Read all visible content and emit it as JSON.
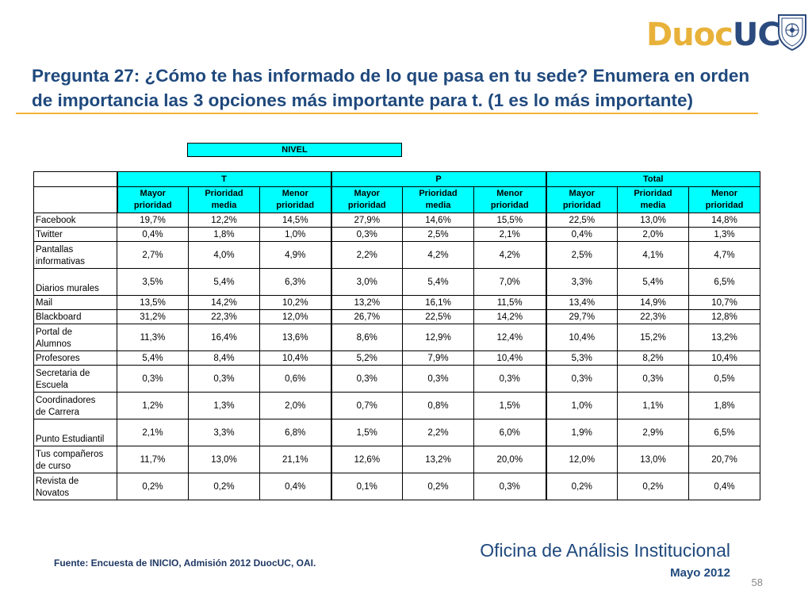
{
  "logo": {
    "duoc": "Duoc",
    "uc": "UC"
  },
  "title": "Pregunta 27: ¿Cómo te has informado  de lo que pasa en tu sede? Enumera en orden de importancia las 3 opciones más importante para t. (1 es lo más importante)",
  "table": {
    "nivel_label": "NIVEL",
    "groups": [
      "T",
      "P",
      "Total"
    ],
    "subheaders": [
      [
        "Mayor",
        "prioridad"
      ],
      [
        "Prioridad",
        "media"
      ],
      [
        "Menor",
        "prioridad"
      ],
      [
        "Mayor",
        "prioridad"
      ],
      [
        "Prioridad",
        "media"
      ],
      [
        "Menor",
        "prioridad"
      ],
      [
        "Mayor",
        "prioridad"
      ],
      [
        "Prioridad",
        "media"
      ],
      [
        "Menor",
        "prioridad"
      ]
    ],
    "rows": [
      {
        "label": [
          "Facebook"
        ],
        "values": [
          "19,7%",
          "12,2%",
          "14,5%",
          "27,9%",
          "14,6%",
          "15,5%",
          "22,5%",
          "13,0%",
          "14,8%"
        ]
      },
      {
        "label": [
          "Twitter"
        ],
        "values": [
          "0,4%",
          "1,8%",
          "1,0%",
          "0,3%",
          "2,5%",
          "2,1%",
          "0,4%",
          "2,0%",
          "1,3%"
        ]
      },
      {
        "label": [
          "Pantallas",
          "informativas"
        ],
        "values": [
          "2,7%",
          "4,0%",
          "4,9%",
          "2,2%",
          "4,2%",
          "4,2%",
          "2,5%",
          "4,1%",
          "4,7%"
        ]
      },
      {
        "label": [
          "Diarios murales"
        ],
        "values": [
          "3,5%",
          "5,4%",
          "6,3%",
          "3,0%",
          "5,4%",
          "7,0%",
          "3,3%",
          "5,4%",
          "6,5%"
        ]
      },
      {
        "label": [
          "Mail"
        ],
        "values": [
          "13,5%",
          "14,2%",
          "10,2%",
          "13,2%",
          "16,1%",
          "11,5%",
          "13,4%",
          "14,9%",
          "10,7%"
        ]
      },
      {
        "label": [
          "Blackboard"
        ],
        "values": [
          "31,2%",
          "22,3%",
          "12,0%",
          "26,7%",
          "22,5%",
          "14,2%",
          "29,7%",
          "22,3%",
          "12,8%"
        ]
      },
      {
        "label": [
          "Portal de",
          "Alumnos"
        ],
        "values": [
          "11,3%",
          "16,4%",
          "13,6%",
          "8,6%",
          "12,9%",
          "12,4%",
          "10,4%",
          "15,2%",
          "13,2%"
        ]
      },
      {
        "label": [
          "Profesores"
        ],
        "values": [
          "5,4%",
          "8,4%",
          "10,4%",
          "5,2%",
          "7,9%",
          "10,4%",
          "5,3%",
          "8,2%",
          "10,4%"
        ]
      },
      {
        "label": [
          "Secretaria de",
          "Escuela"
        ],
        "values": [
          "0,3%",
          "0,3%",
          "0,6%",
          "0,3%",
          "0,3%",
          "0,3%",
          "0,3%",
          "0,3%",
          "0,5%"
        ]
      },
      {
        "label": [
          "Coordinadores",
          "de Carrera"
        ],
        "values": [
          "1,2%",
          "1,3%",
          "2,0%",
          "0,7%",
          "0,8%",
          "1,5%",
          "1,0%",
          "1,1%",
          "1,8%"
        ]
      },
      {
        "label": [
          "Punto Estudiantil"
        ],
        "values": [
          "2,1%",
          "3,3%",
          "6,8%",
          "1,5%",
          "2,2%",
          "6,0%",
          "1,9%",
          "2,9%",
          "6,5%"
        ]
      },
      {
        "label": [
          "Tus compañeros",
          "de curso"
        ],
        "values": [
          "11,7%",
          "13,0%",
          "21,1%",
          "12,6%",
          "13,2%",
          "20,0%",
          "12,0%",
          "13,0%",
          "20,7%"
        ]
      },
      {
        "label": [
          "Revista de",
          "Novatos"
        ],
        "values": [
          "0,2%",
          "0,2%",
          "0,4%",
          "0,1%",
          "0,2%",
          "0,3%",
          "0,2%",
          "0,2%",
          "0,4%"
        ]
      }
    ]
  },
  "source": "Fuente: Encuesta de INICIO, Admisión 2012 DuocUC, OAI.",
  "office": "Oficina de Análisis Institucional",
  "date": "Mayo 2012",
  "page_number": "58",
  "colors": {
    "title": "#1F497D",
    "accent": "#F2B134",
    "header_fill": "#00FFFF",
    "logo_duoc": "#E8B23A",
    "logo_uc": "#2B4A7E"
  }
}
